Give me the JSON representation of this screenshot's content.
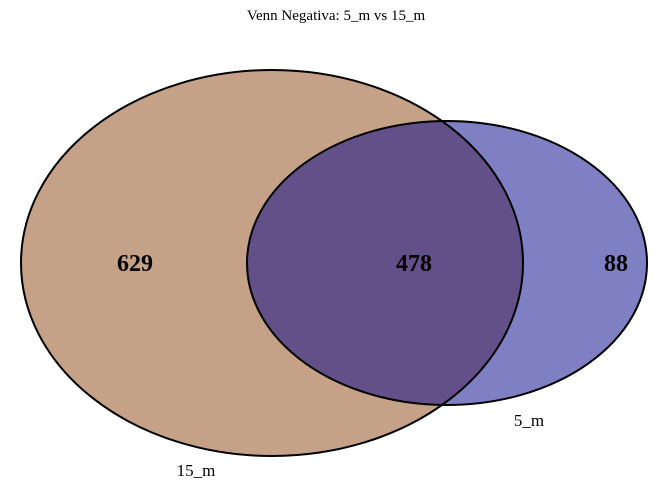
{
  "title": "Venn Negativa: 5_m vs 15_m",
  "sets": [
    {
      "label": "15_m",
      "color": "#C4A187",
      "only_count": "629"
    },
    {
      "label": "5_m",
      "color": "#7F7FC4",
      "only_count": "88"
    }
  ],
  "intersection": {
    "count": "478",
    "color": "#635088"
  },
  "outline_color": "#000000"
}
